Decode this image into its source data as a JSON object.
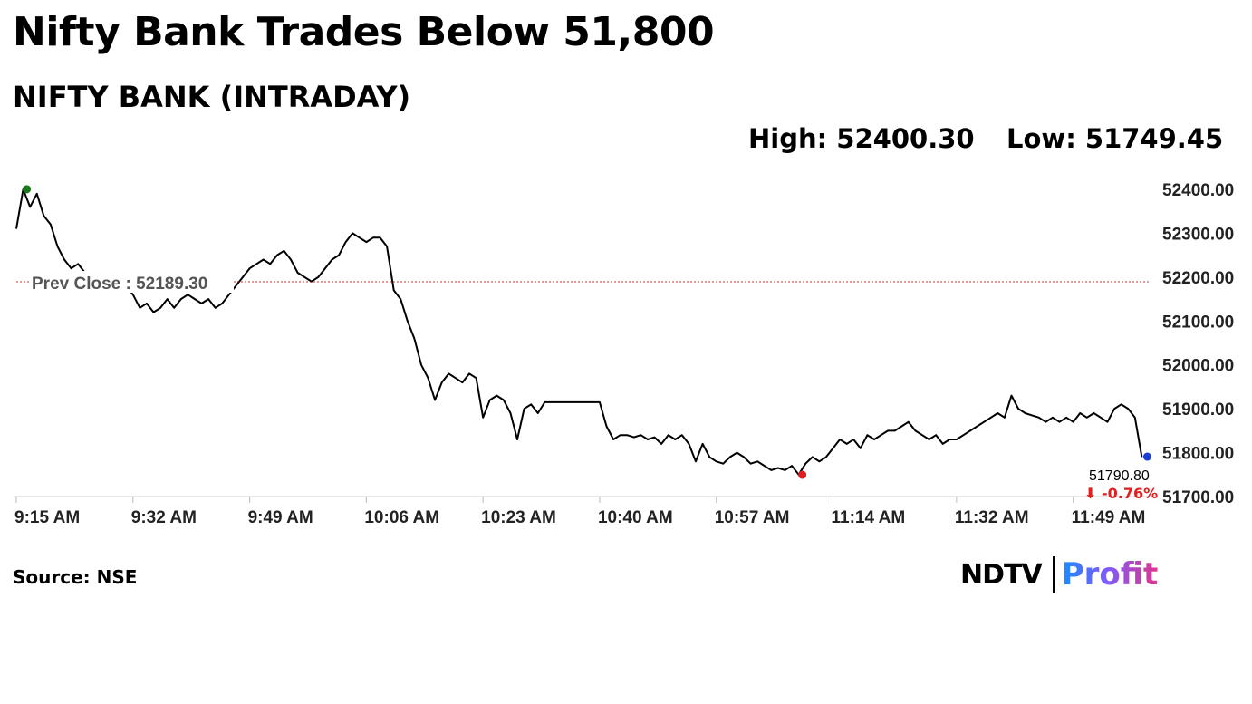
{
  "header": {
    "title": "Nifty Bank Trades Below 51,800",
    "subtitle": "NIFTY BANK (INTRADAY)"
  },
  "stats": {
    "high": "High: 52400.30",
    "low": "Low: 51749.45"
  },
  "footer": {
    "source": "Source: NSE",
    "logo_left": "NDTV",
    "logo_right": "Profit"
  },
  "colors": {
    "line": "#000000",
    "high_marker": "#1a7a1a",
    "low_marker": "#e02020",
    "last_marker": "#1a3fd6",
    "prev_close_line": "#cc3333",
    "negative": "#e02020",
    "axis_text": "#222222"
  },
  "chart_data": {
    "type": "line",
    "title": "NIFTY BANK (INTRADAY)",
    "xlabel": "",
    "ylabel": "",
    "ylim": [
      51700,
      52400
    ],
    "xlim": [
      "9:15",
      "12:00"
    ],
    "x_ticks": [
      "9:15 AM",
      "9:32 AM",
      "9:49 AM",
      "10:06 AM",
      "10:23 AM",
      "10:40 AM",
      "10:57 AM",
      "11:14 AM",
      "11:32 AM",
      "11:49 AM"
    ],
    "y_ticks": [
      "52400.00",
      "52300.00",
      "52200.00",
      "52100.00",
      "52000.00",
      "51900.00",
      "51800.00",
      "51700.00"
    ],
    "prev_close": 52189.3,
    "prev_close_label": "Prev Close : 52189.30",
    "high": {
      "time": "9:16",
      "value": 52400.3
    },
    "low": {
      "time": "11:09",
      "value": 51749.45
    },
    "last": {
      "time": "11:59",
      "value": 51790.8,
      "label": "51790.80",
      "change": "-0.76%"
    },
    "series": [
      {
        "points": [
          [
            "9:15",
            52310
          ],
          [
            "9:16",
            52400
          ],
          [
            "9:17",
            52360
          ],
          [
            "9:18",
            52390
          ],
          [
            "9:19",
            52340
          ],
          [
            "9:20",
            52320
          ],
          [
            "9:21",
            52270
          ],
          [
            "9:22",
            52240
          ],
          [
            "9:23",
            52220
          ],
          [
            "9:24",
            52230
          ],
          [
            "9:25",
            52210
          ],
          [
            "9:26",
            52200
          ],
          [
            "9:27",
            52200
          ],
          [
            "9:28",
            52195
          ],
          [
            "9:29",
            52190
          ],
          [
            "9:30",
            52205
          ],
          [
            "9:31",
            52180
          ],
          [
            "9:32",
            52160
          ],
          [
            "9:33",
            52130
          ],
          [
            "9:34",
            52140
          ],
          [
            "9:35",
            52120
          ],
          [
            "9:36",
            52130
          ],
          [
            "9:37",
            52150
          ],
          [
            "9:38",
            52130
          ],
          [
            "9:39",
            52150
          ],
          [
            "9:40",
            52160
          ],
          [
            "9:41",
            52150
          ],
          [
            "9:42",
            52140
          ],
          [
            "9:43",
            52150
          ],
          [
            "9:44",
            52130
          ],
          [
            "9:45",
            52140
          ],
          [
            "9:46",
            52160
          ],
          [
            "9:47",
            52180
          ],
          [
            "9:48",
            52200
          ],
          [
            "9:49",
            52220
          ],
          [
            "9:50",
            52230
          ],
          [
            "9:51",
            52240
          ],
          [
            "9:52",
            52230
          ],
          [
            "9:53",
            52250
          ],
          [
            "9:54",
            52260
          ],
          [
            "9:55",
            52240
          ],
          [
            "9:56",
            52210
          ],
          [
            "9:57",
            52200
          ],
          [
            "9:58",
            52190
          ],
          [
            "9:59",
            52200
          ],
          [
            "10:00",
            52220
          ],
          [
            "10:01",
            52240
          ],
          [
            "10:02",
            52250
          ],
          [
            "10:03",
            52280
          ],
          [
            "10:04",
            52300
          ],
          [
            "10:05",
            52290
          ],
          [
            "10:06",
            52280
          ],
          [
            "10:07",
            52290
          ],
          [
            "10:08",
            52290
          ],
          [
            "10:09",
            52270
          ],
          [
            "10:10",
            52170
          ],
          [
            "10:11",
            52150
          ],
          [
            "10:12",
            52100
          ],
          [
            "10:13",
            52060
          ],
          [
            "10:14",
            52000
          ],
          [
            "10:15",
            51970
          ],
          [
            "10:16",
            51920
          ],
          [
            "10:17",
            51960
          ],
          [
            "10:18",
            51980
          ],
          [
            "10:19",
            51970
          ],
          [
            "10:20",
            51960
          ],
          [
            "10:21",
            51980
          ],
          [
            "10:22",
            51970
          ],
          [
            "10:23",
            51880
          ],
          [
            "10:24",
            51920
          ],
          [
            "10:25",
            51930
          ],
          [
            "10:26",
            51920
          ],
          [
            "10:27",
            51890
          ],
          [
            "10:28",
            51830
          ],
          [
            "10:29",
            51900
          ],
          [
            "10:30",
            51910
          ],
          [
            "10:31",
            51890
          ],
          [
            "10:32",
            51915
          ],
          [
            "10:40",
            51915
          ],
          [
            "10:41",
            51860
          ],
          [
            "10:42",
            51830
          ],
          [
            "10:43",
            51840
          ],
          [
            "10:44",
            51840
          ],
          [
            "10:45",
            51835
          ],
          [
            "10:46",
            51840
          ],
          [
            "10:47",
            51830
          ],
          [
            "10:48",
            51835
          ],
          [
            "10:49",
            51820
          ],
          [
            "10:50",
            51840
          ],
          [
            "10:51",
            51830
          ],
          [
            "10:52",
            51840
          ],
          [
            "10:53",
            51820
          ],
          [
            "10:54",
            51780
          ],
          [
            "10:55",
            51820
          ],
          [
            "10:56",
            51790
          ],
          [
            "10:57",
            51780
          ],
          [
            "10:58",
            51775
          ],
          [
            "10:59",
            51790
          ],
          [
            "11:00",
            51800
          ],
          [
            "11:01",
            51790
          ],
          [
            "11:02",
            51775
          ],
          [
            "11:03",
            51780
          ],
          [
            "11:04",
            51770
          ],
          [
            "11:05",
            51760
          ],
          [
            "11:06",
            51765
          ],
          [
            "11:07",
            51760
          ],
          [
            "11:08",
            51770
          ],
          [
            "11:09",
            51750
          ],
          [
            "11:10",
            51775
          ],
          [
            "11:11",
            51790
          ],
          [
            "11:12",
            51780
          ],
          [
            "11:13",
            51790
          ],
          [
            "11:14",
            51810
          ],
          [
            "11:15",
            51830
          ],
          [
            "11:16",
            51820
          ],
          [
            "11:17",
            51830
          ],
          [
            "11:18",
            51810
          ],
          [
            "11:19",
            51840
          ],
          [
            "11:20",
            51830
          ],
          [
            "11:21",
            51840
          ],
          [
            "11:22",
            51850
          ],
          [
            "11:23",
            51850
          ],
          [
            "11:24",
            51860
          ],
          [
            "11:25",
            51870
          ],
          [
            "11:26",
            51850
          ],
          [
            "11:27",
            51840
          ],
          [
            "11:28",
            51830
          ],
          [
            "11:29",
            51840
          ],
          [
            "11:30",
            51820
          ],
          [
            "11:31",
            51830
          ],
          [
            "11:32",
            51830
          ],
          [
            "11:33",
            51840
          ],
          [
            "11:34",
            51850
          ],
          [
            "11:35",
            51860
          ],
          [
            "11:36",
            51870
          ],
          [
            "11:37",
            51880
          ],
          [
            "11:38",
            51890
          ],
          [
            "11:39",
            51880
          ],
          [
            "11:40",
            51930
          ],
          [
            "11:41",
            51900
          ],
          [
            "11:42",
            51890
          ],
          [
            "11:43",
            51885
          ],
          [
            "11:44",
            51880
          ],
          [
            "11:45",
            51870
          ],
          [
            "11:46",
            51880
          ],
          [
            "11:47",
            51870
          ],
          [
            "11:48",
            51880
          ],
          [
            "11:49",
            51870
          ],
          [
            "11:50",
            51890
          ],
          [
            "11:51",
            51880
          ],
          [
            "11:52",
            51890
          ],
          [
            "11:53",
            51880
          ],
          [
            "11:54",
            51870
          ],
          [
            "11:55",
            51900
          ],
          [
            "11:56",
            51910
          ],
          [
            "11:57",
            51900
          ],
          [
            "11:58",
            51880
          ],
          [
            "11:59",
            51790
          ]
        ]
      }
    ]
  }
}
